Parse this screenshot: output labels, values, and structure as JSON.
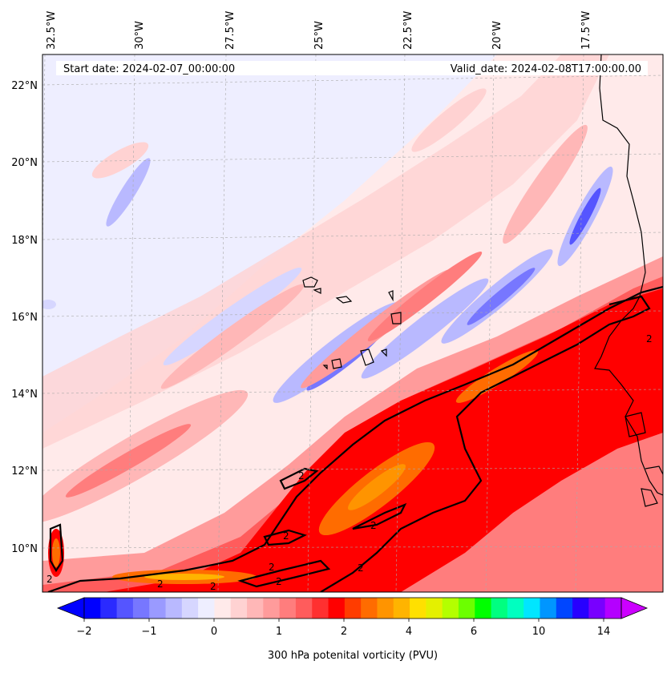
{
  "map": {
    "start_date": "Start date: 2024-02-07_00:00:00",
    "valid_date": "Valid_date: 2024-02-08T17:00:00.00",
    "lon_labels": [
      "32.5°W",
      "30°W",
      "27.5°W",
      "25°W",
      "22.5°W",
      "20°W",
      "17.5°W"
    ],
    "lat_labels": [
      "22°N",
      "20°N",
      "18°N",
      "16°N",
      "14°N",
      "12°N",
      "10°N"
    ],
    "contour_label": "2",
    "colorbar": {
      "label": "300 hPa potenital vorticity (PVU)",
      "ticks": [
        "−2",
        "−1",
        "0",
        "1",
        "2",
        "4",
        "6",
        "10",
        "14"
      ],
      "colors": [
        "#0000ff",
        "#2a2aff",
        "#5555ff",
        "#7777ff",
        "#9a9aff",
        "#b9b9ff",
        "#d6d6ff",
        "#eeeeff",
        "#ffeaea",
        "#ffd2d2",
        "#ffb7b7",
        "#ff9b9b",
        "#ff7d7d",
        "#ff5c5c",
        "#ff3030",
        "#ff0000",
        "#ff3c00",
        "#ff6c00",
        "#ff9400",
        "#ffb400",
        "#ffe000",
        "#e4f000",
        "#b4ff00",
        "#6cff00",
        "#00ff00",
        "#00ff80",
        "#00ffc0",
        "#00e6ff",
        "#0096ff",
        "#0046ff",
        "#2800ff",
        "#7800ff",
        "#b400ff"
      ]
    }
  }
}
